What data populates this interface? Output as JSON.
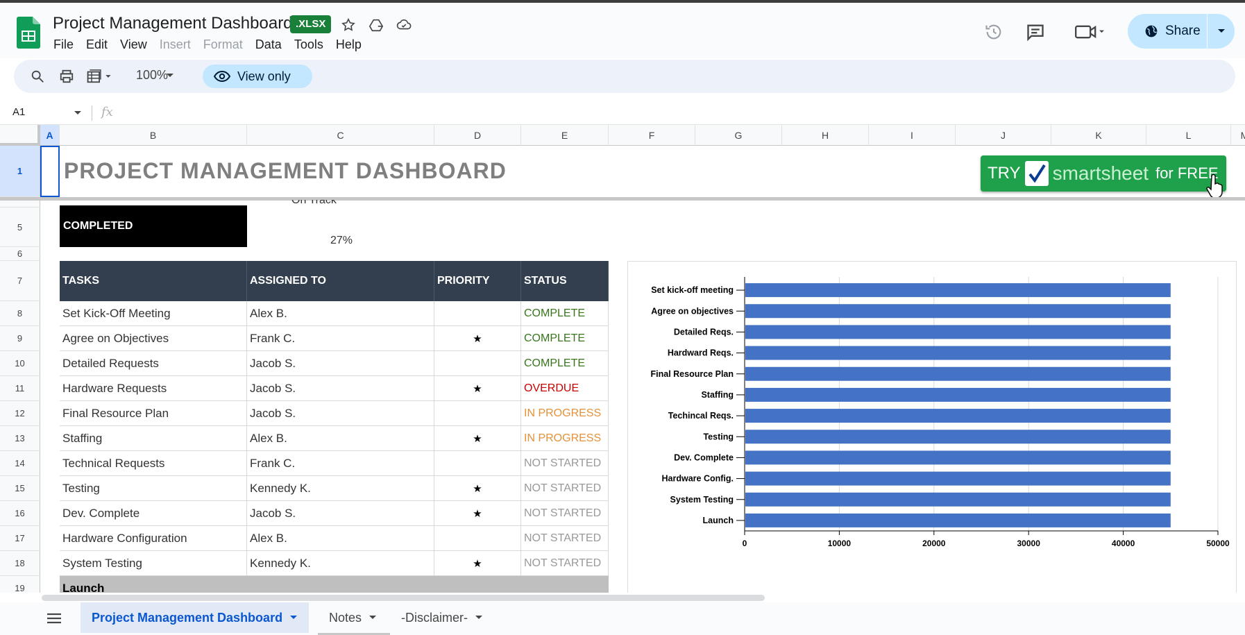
{
  "app": {
    "doc_title": "Project Management Dashboard",
    "file_badge": ".XLSX",
    "menu": [
      "File",
      "Edit",
      "View",
      "Insert",
      "Format",
      "Data",
      "Tools",
      "Help"
    ],
    "share_label": "Share"
  },
  "toolbar": {
    "zoom": "100%",
    "view_only_label": "View only"
  },
  "formula_bar": {
    "cell_ref": "A1",
    "fx": "fx"
  },
  "columns": [
    "A",
    "B",
    "C",
    "D",
    "E",
    "F",
    "G",
    "H",
    "I",
    "J",
    "K",
    "L",
    "M"
  ],
  "rows": [
    "1",
    "5",
    "6",
    "7",
    "8",
    "9",
    "10",
    "11",
    "12",
    "13",
    "14",
    "15",
    "16",
    "17",
    "18",
    "19"
  ],
  "sheet": {
    "title": "PROJECT MANAGEMENT DASHBOARD",
    "banner": {
      "try": "TRY",
      "brand": "smartsheet",
      "free": "for FREE"
    },
    "on_track": "On Track",
    "completed_label": "COMPLETED",
    "completed_pct": "27%",
    "table": {
      "headers": [
        "TASKS",
        "ASSIGNED TO",
        "PRIORITY",
        "STATUS"
      ],
      "rows": [
        {
          "task": "Set Kick-Off Meeting",
          "assigned": "Alex B.",
          "priority": "",
          "status": "COMPLETE"
        },
        {
          "task": "Agree on Objectives",
          "assigned": "Frank C.",
          "priority": "★",
          "status": "COMPLETE"
        },
        {
          "task": "Detailed Requests",
          "assigned": "Jacob S.",
          "priority": "",
          "status": "COMPLETE"
        },
        {
          "task": "Hardware Requests",
          "assigned": "Jacob S.",
          "priority": "★",
          "status": "OVERDUE"
        },
        {
          "task": "Final Resource Plan",
          "assigned": "Jacob S.",
          "priority": "",
          "status": "IN PROGRESS"
        },
        {
          "task": "Staffing",
          "assigned": "Alex B.",
          "priority": "★",
          "status": "IN PROGRESS"
        },
        {
          "task": "Technical Requests",
          "assigned": "Frank C.",
          "priority": "",
          "status": "NOT STARTED"
        },
        {
          "task": "Testing",
          "assigned": "Kennedy K.",
          "priority": "★",
          "status": "NOT STARTED"
        },
        {
          "task": "Dev. Complete",
          "assigned": "Jacob S.",
          "priority": "★",
          "status": "NOT STARTED"
        },
        {
          "task": "Hardware Configuration",
          "assigned": "Alex B.",
          "priority": "",
          "status": "NOT STARTED"
        },
        {
          "task": "System Testing",
          "assigned": "Kennedy K.",
          "priority": "★",
          "status": "NOT STARTED"
        }
      ],
      "last_row_label": "Launch"
    },
    "status_colors": {
      "COMPLETE": "#38761d",
      "OVERDUE": "#cc0000",
      "IN PROGRESS": "#e69138",
      "NOT STARTED": "#999999"
    }
  },
  "chart_data": {
    "type": "bar",
    "orientation": "horizontal",
    "categories": [
      "Set kick-off meeting",
      "Agree on objectives",
      "Detailed Reqs.",
      "Hardward Reqs.",
      "Final Resource Plan",
      "Staffing",
      "Techincal Reqs.",
      "Testing",
      "Dev. Complete",
      "Hardware Config.",
      "System Testing",
      "Launch"
    ],
    "values": [
      45000,
      45000,
      45000,
      45000,
      45000,
      45000,
      45000,
      45000,
      45000,
      45000,
      45000,
      45000
    ],
    "xlim": [
      0,
      50000
    ],
    "x_ticks": [
      "0",
      "10000",
      "20000",
      "30000",
      "40000",
      "50000"
    ],
    "bar_color": "#4472c4",
    "grid": true,
    "title": "",
    "xlabel": "",
    "ylabel": ""
  },
  "tabs": [
    {
      "label": "Project Management Dashboard",
      "active": true
    },
    {
      "label": "Notes",
      "active": false
    },
    {
      "label": "-Disclaimer-",
      "active": false
    }
  ]
}
